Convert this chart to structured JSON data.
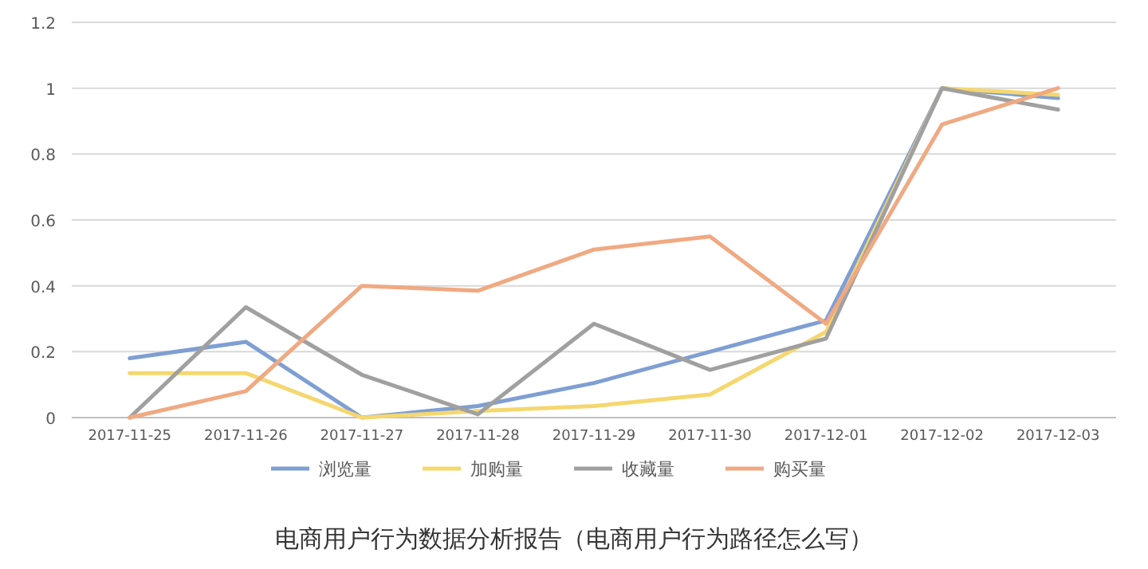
{
  "chart_data": {
    "type": "line",
    "categories": [
      "2017-11-25",
      "2017-11-26",
      "2017-11-27",
      "2017-11-28",
      "2017-11-29",
      "2017-11-30",
      "2017-12-01",
      "2017-12-02",
      "2017-12-03"
    ],
    "series": [
      {
        "name": "浏览量",
        "color": "#7f9fd3",
        "values": [
          0.18,
          0.23,
          0.0,
          0.035,
          0.105,
          0.2,
          0.295,
          1.0,
          0.97
        ]
      },
      {
        "name": "加购量",
        "color": "#f5d76e",
        "values": [
          0.135,
          0.135,
          0.0,
          0.02,
          0.035,
          0.07,
          0.26,
          1.0,
          0.98
        ]
      },
      {
        "name": "收藏量",
        "color": "#a0a0a0",
        "values": [
          0.0,
          0.335,
          0.13,
          0.01,
          0.285,
          0.145,
          0.24,
          1.0,
          0.935
        ]
      },
      {
        "name": "购买量",
        "color": "#f0a982",
        "values": [
          0.0,
          0.08,
          0.4,
          0.385,
          0.51,
          0.55,
          0.285,
          0.89,
          1.0
        ]
      }
    ],
    "ylim": [
      0,
      1.2
    ],
    "yticks": [
      0,
      0.2,
      0.4,
      0.6,
      0.8,
      1,
      1.2
    ],
    "grid": "y",
    "legend": "bottom",
    "marker": "none",
    "line_style": "solid",
    "annotations": [
      "电商用户行为数据分析报告（电商用户行为路径怎么写）"
    ]
  }
}
